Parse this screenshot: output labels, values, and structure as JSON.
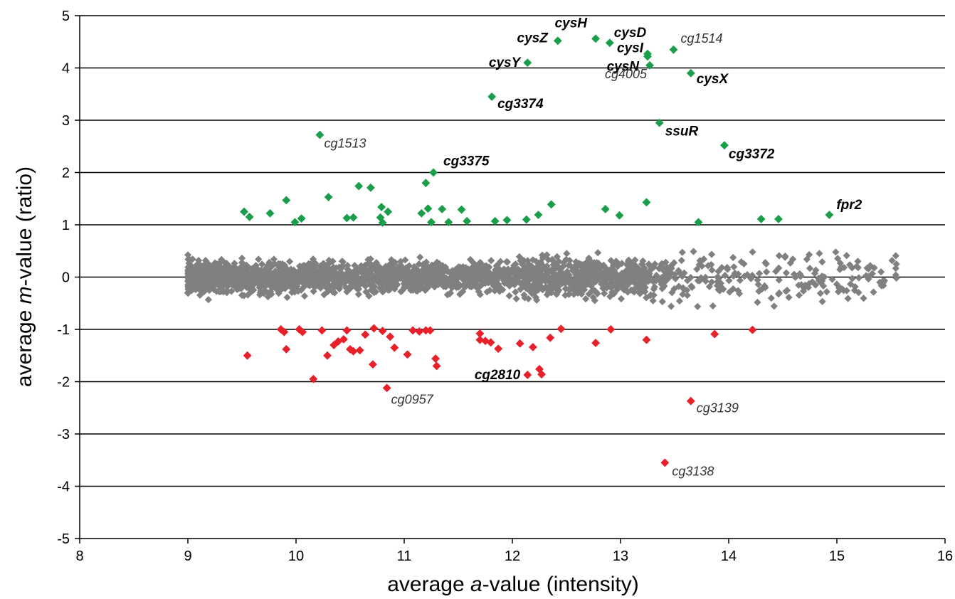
{
  "chart_data": {
    "type": "scatter",
    "title": "",
    "xlabel_prefix": "average ",
    "xlabel_var": "a",
    "xlabel_suffix": "-value (intensity)",
    "ylabel_prefix": "average ",
    "ylabel_var": "m",
    "ylabel_suffix": "-value (ratio)",
    "xlim": [
      8,
      16
    ],
    "ylim": [
      -5,
      5
    ],
    "xticks": [
      8,
      9,
      10,
      11,
      12,
      13,
      14,
      15,
      16
    ],
    "yticks": [
      5,
      4,
      3,
      2,
      1,
      0,
      -1,
      -2,
      -3,
      -4,
      -5
    ],
    "grid": "horizontal",
    "colors": {
      "up": "#1a9e4a",
      "down": "#e8202a",
      "neutral": "#808080"
    },
    "labeled_points": [
      {
        "label": "cysZ",
        "x": 12.42,
        "y": 4.52,
        "class": "up",
        "bold": true,
        "anchor": "end",
        "dx": -14,
        "dy": 2
      },
      {
        "label": "cysH",
        "x": 12.77,
        "y": 4.56,
        "class": "up",
        "bold": true,
        "anchor": "end",
        "dx": -12,
        "dy": -16
      },
      {
        "label": "cysD",
        "x": 12.9,
        "y": 4.48,
        "class": "up",
        "bold": true,
        "anchor": "start",
        "dx": 6,
        "dy": -8
      },
      {
        "label": "cysI",
        "x": 13.25,
        "y": 4.27,
        "class": "up",
        "bold": true,
        "anchor": "end",
        "dx": -6,
        "dy": -2
      },
      {
        "label": "cysN",
        "x": 13.25,
        "y": 4.22,
        "class": "up",
        "bold": true,
        "anchor": "end",
        "dx": -12,
        "dy": 20
      },
      {
        "label": "cg4005",
        "x": 13.27,
        "y": 4.05,
        "class": "up",
        "bold": false,
        "anchor": "end",
        "dx": -4,
        "dy": 18
      },
      {
        "label": "cg1514",
        "x": 13.49,
        "y": 4.35,
        "class": "up",
        "bold": false,
        "anchor": "start",
        "dx": 10,
        "dy": -10
      },
      {
        "label": "cysY",
        "x": 12.14,
        "y": 4.1,
        "class": "up",
        "bold": true,
        "anchor": "end",
        "dx": -10,
        "dy": 6
      },
      {
        "label": "cysX",
        "x": 13.65,
        "y": 3.9,
        "class": "up",
        "bold": true,
        "anchor": "start",
        "dx": 8,
        "dy": 14
      },
      {
        "label": "cg3374",
        "x": 11.81,
        "y": 3.45,
        "class": "up",
        "bold": true,
        "anchor": "start",
        "dx": 8,
        "dy": 16
      },
      {
        "label": "ssuR",
        "x": 13.36,
        "y": 2.95,
        "class": "up",
        "bold": true,
        "anchor": "start",
        "dx": 8,
        "dy": 18
      },
      {
        "label": "cg1513",
        "x": 10.22,
        "y": 2.72,
        "class": "up",
        "bold": false,
        "anchor": "start",
        "dx": 6,
        "dy": 18
      },
      {
        "label": "cg3372",
        "x": 13.96,
        "y": 2.52,
        "class": "up",
        "bold": true,
        "anchor": "start",
        "dx": 6,
        "dy": 18
      },
      {
        "label": "cg3375",
        "x": 11.27,
        "y": 2.0,
        "class": "up",
        "bold": true,
        "anchor": "start",
        "dx": 14,
        "dy": -10
      },
      {
        "label": "fpr2",
        "x": 14.93,
        "y": 1.19,
        "class": "up",
        "bold": true,
        "anchor": "start",
        "dx": 10,
        "dy": -8
      },
      {
        "label": "cg2810",
        "x": 12.14,
        "y": -1.87,
        "class": "down",
        "bold": true,
        "anchor": "end",
        "dx": -10,
        "dy": 6
      },
      {
        "label": "cg0957",
        "x": 10.84,
        "y": -2.12,
        "class": "down",
        "bold": false,
        "anchor": "start",
        "dx": 6,
        "dy": 22
      },
      {
        "label": "cg3139",
        "x": 13.65,
        "y": -2.37,
        "class": "down",
        "bold": false,
        "anchor": "start",
        "dx": 8,
        "dy": 16
      },
      {
        "label": "cg3138",
        "x": 13.41,
        "y": -3.55,
        "class": "down",
        "bold": false,
        "anchor": "start",
        "dx": 10,
        "dy": 18
      }
    ],
    "up_points": [
      [
        9.52,
        1.25
      ],
      [
        9.57,
        1.15
      ],
      [
        9.76,
        1.22
      ],
      [
        9.91,
        1.47
      ],
      [
        9.99,
        1.05
      ],
      [
        10.05,
        1.12
      ],
      [
        10.3,
        1.53
      ],
      [
        10.47,
        1.13
      ],
      [
        10.53,
        1.14
      ],
      [
        10.58,
        1.74
      ],
      [
        10.69,
        1.71
      ],
      [
        10.78,
        1.14
      ],
      [
        10.79,
        1.34
      ],
      [
        10.8,
        1.04
      ],
      [
        10.85,
        1.25
      ],
      [
        11.16,
        1.22
      ],
      [
        11.2,
        1.8
      ],
      [
        11.22,
        1.31
      ],
      [
        11.25,
        1.05
      ],
      [
        11.35,
        1.3
      ],
      [
        11.41,
        1.05
      ],
      [
        11.53,
        1.29
      ],
      [
        11.58,
        1.07
      ],
      [
        11.84,
        1.07
      ],
      [
        11.95,
        1.09
      ],
      [
        12.13,
        1.1
      ],
      [
        12.24,
        1.19
      ],
      [
        12.36,
        1.39
      ],
      [
        12.86,
        1.3
      ],
      [
        12.99,
        1.18
      ],
      [
        13.24,
        1.43
      ],
      [
        13.72,
        1.05
      ],
      [
        14.3,
        1.11
      ],
      [
        14.46,
        1.11
      ]
    ],
    "down_points": [
      [
        9.55,
        -1.5
      ],
      [
        9.86,
        -1.0
      ],
      [
        9.89,
        -1.05
      ],
      [
        9.91,
        -1.38
      ],
      [
        10.03,
        -1.0
      ],
      [
        10.06,
        -1.05
      ],
      [
        10.16,
        -1.95
      ],
      [
        10.24,
        -1.02
      ],
      [
        10.29,
        -1.5
      ],
      [
        10.35,
        -1.3
      ],
      [
        10.39,
        -1.23
      ],
      [
        10.44,
        -1.19
      ],
      [
        10.47,
        -1.02
      ],
      [
        10.5,
        -1.38
      ],
      [
        10.53,
        -1.42
      ],
      [
        10.59,
        -1.4
      ],
      [
        10.64,
        -1.1
      ],
      [
        10.71,
        -1.67
      ],
      [
        10.72,
        -0.98
      ],
      [
        10.8,
        -1.03
      ],
      [
        10.87,
        -1.14
      ],
      [
        10.91,
        -1.35
      ],
      [
        11.03,
        -1.48
      ],
      [
        11.08,
        -1.02
      ],
      [
        11.14,
        -1.04
      ],
      [
        11.2,
        -1.02
      ],
      [
        11.24,
        -1.02
      ],
      [
        11.29,
        -1.56
      ],
      [
        11.3,
        -1.7
      ],
      [
        11.7,
        -1.08
      ],
      [
        11.7,
        -1.2
      ],
      [
        11.75,
        -1.22
      ],
      [
        11.8,
        -1.25
      ],
      [
        11.87,
        -1.37
      ],
      [
        12.07,
        -1.27
      ],
      [
        12.19,
        -1.34
      ],
      [
        12.25,
        -1.76
      ],
      [
        12.27,
        -1.86
      ],
      [
        12.35,
        -1.16
      ],
      [
        12.45,
        -0.99
      ],
      [
        12.77,
        -1.26
      ],
      [
        12.91,
        -1.0
      ],
      [
        13.24,
        -1.2
      ],
      [
        13.87,
        -1.09
      ],
      [
        14.22,
        -1.01
      ]
    ]
  }
}
